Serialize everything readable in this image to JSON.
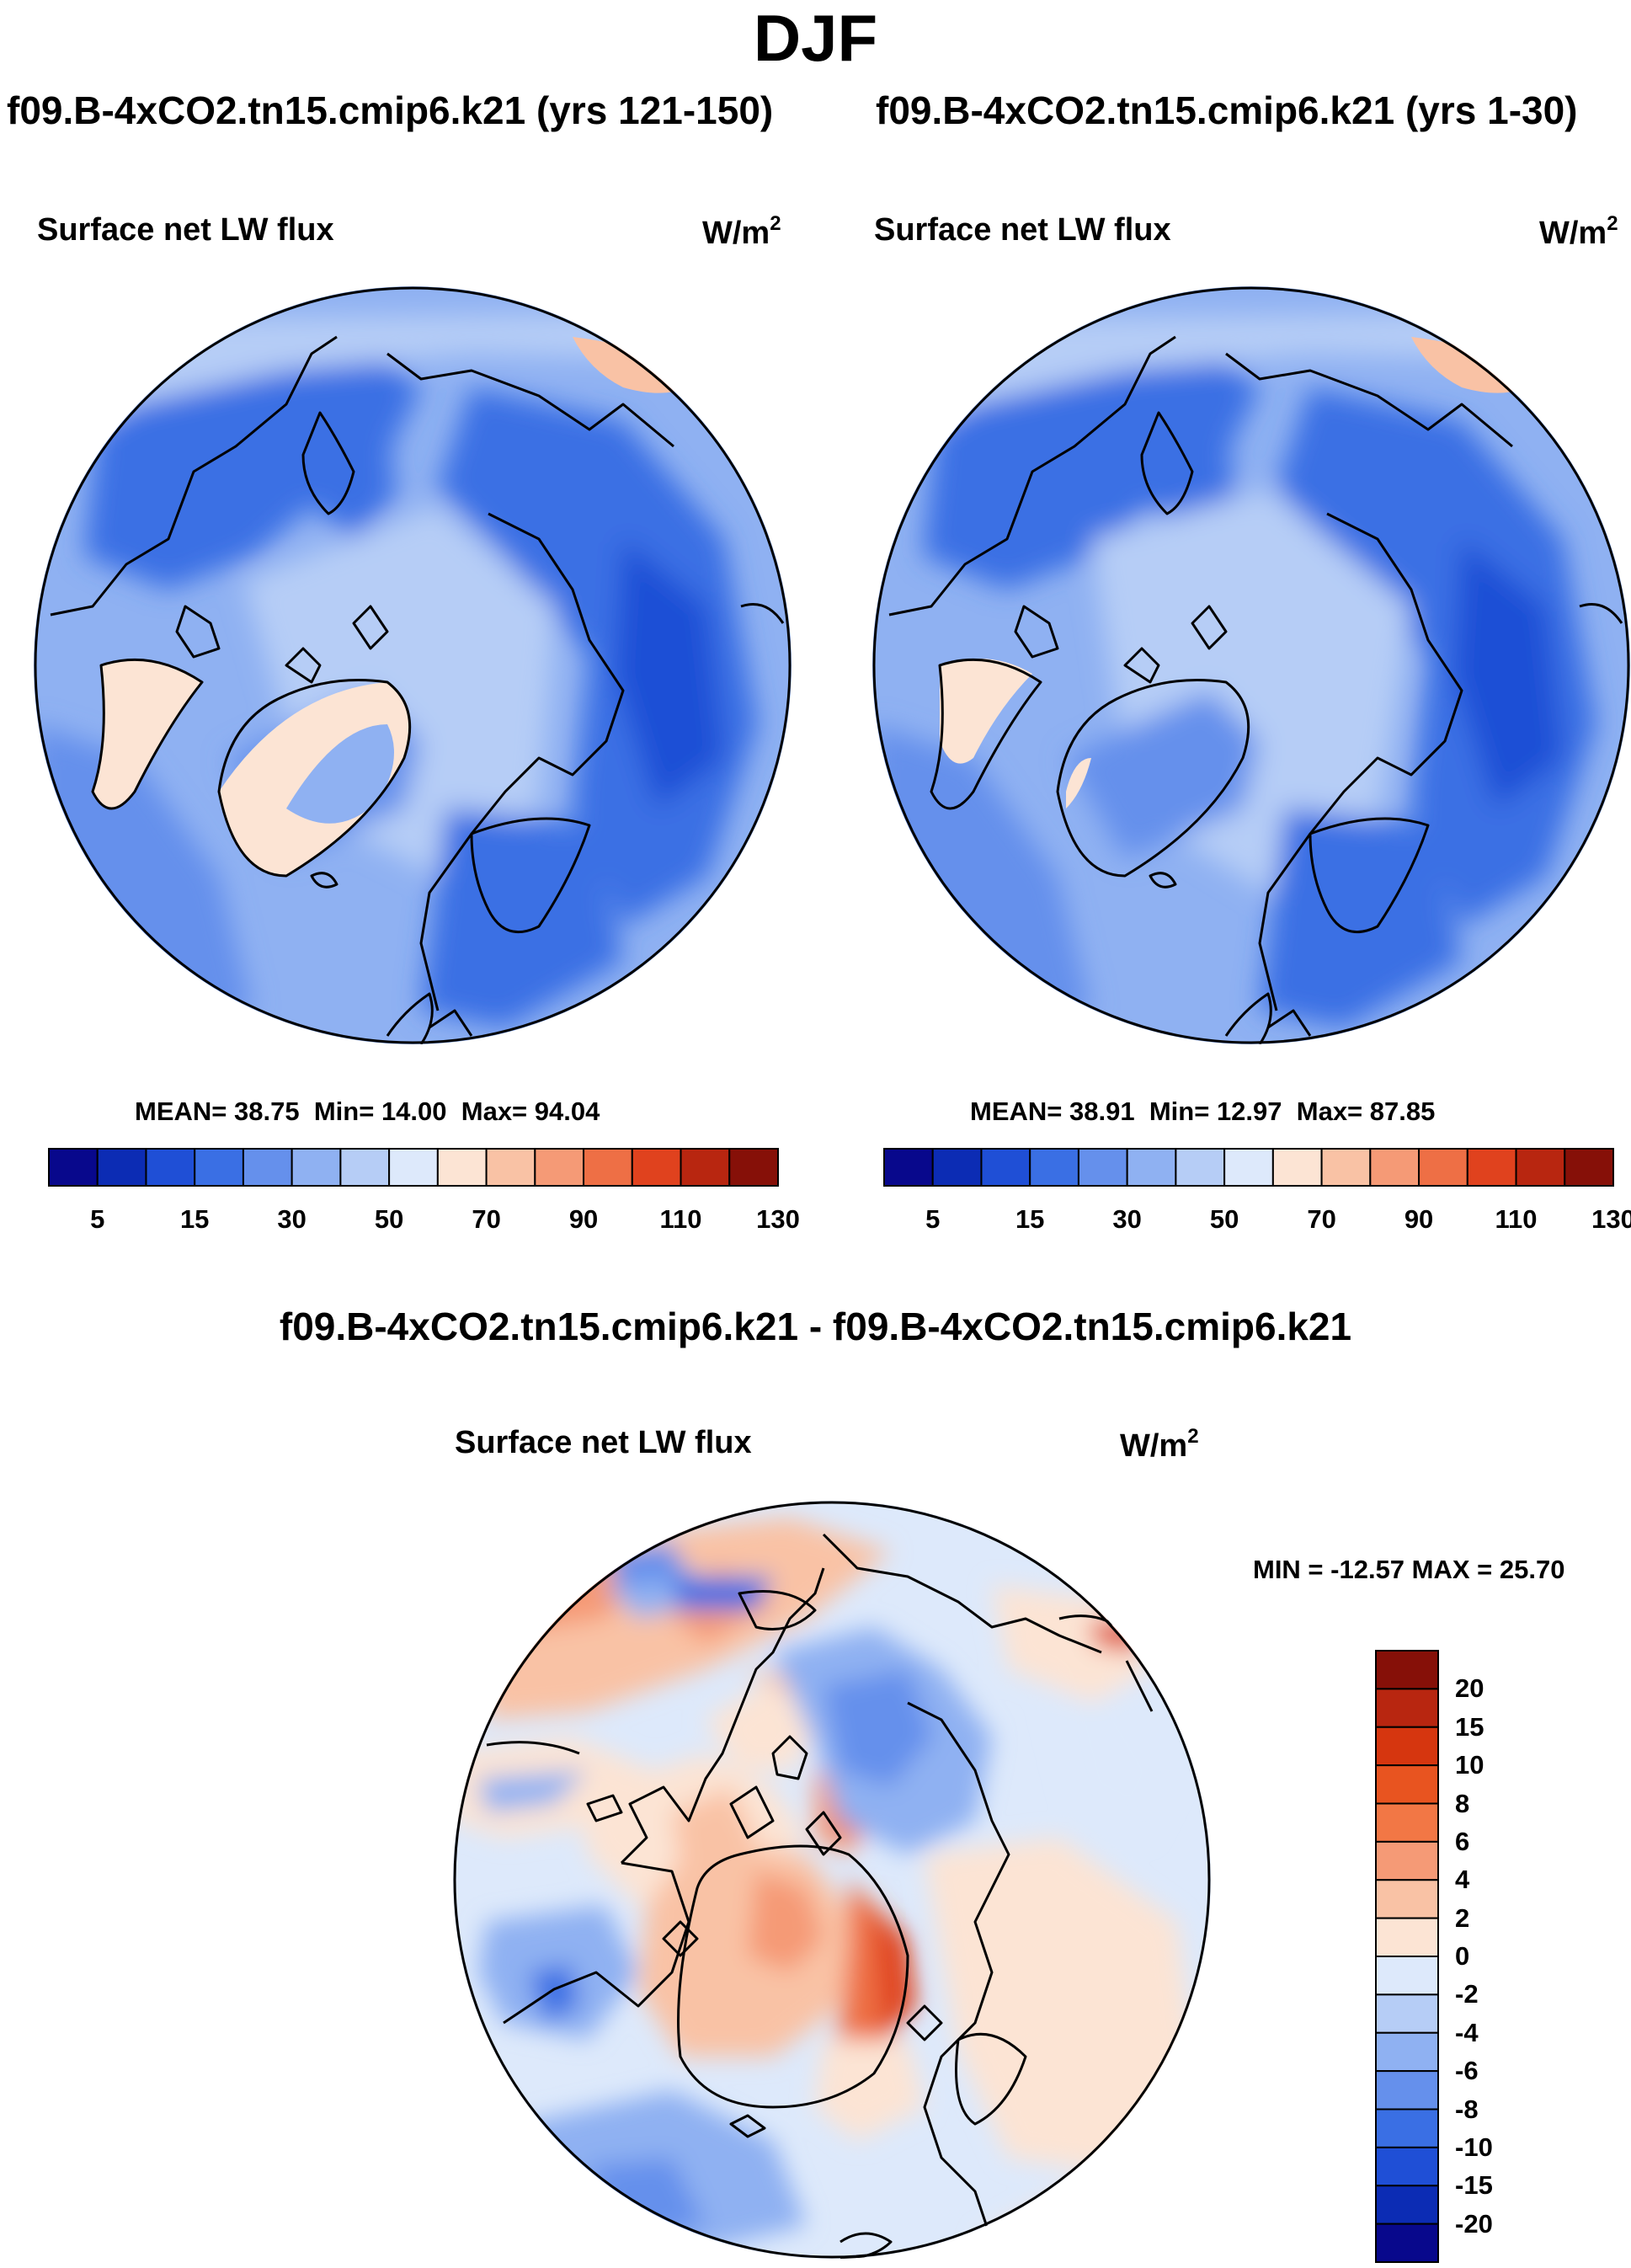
{
  "main_title": "DJF",
  "panels": [
    {
      "run_title": "f09.B-4xCO2.tn15.cmip6.k21 (yrs 121-150)",
      "variable": "Surface net LW flux",
      "units": "W/m",
      "units_exponent": "2",
      "stats": {
        "mean_label": "MEAN=",
        "mean": "38.75",
        "min_label": "Min=",
        "min": "14.00",
        "max_label": "Max=",
        "max": "94.04"
      }
    },
    {
      "run_title": "f09.B-4xCO2.tn15.cmip6.k21 (yrs 1-30)",
      "variable": "Surface net LW flux",
      "units": "W/m",
      "units_exponent": "2",
      "stats": {
        "mean_label": "MEAN=",
        "mean": "38.91",
        "min_label": "Min=",
        "min": "12.97",
        "max_label": "Max=",
        "max": "87.85"
      }
    }
  ],
  "diff_panel": {
    "title": "f09.B-4xCO2.tn15.cmip6.k21 - f09.B-4xCO2.tn15.cmip6.k21",
    "variable": "Surface net LW flux",
    "units": "W/m",
    "units_exponent": "2",
    "minmax": "MIN = -12.57  MAX =  25.70"
  },
  "colorbar_abs": {
    "colors": [
      "#08088c",
      "#0c2cb4",
      "#1f4fd6",
      "#3a6fe4",
      "#6590ec",
      "#8fb1f2",
      "#b6cdf6",
      "#dde9fb",
      "#fce4d4",
      "#f9c2a5",
      "#f59a76",
      "#ee6f45",
      "#e0421e",
      "#b82610",
      "#861008"
    ],
    "tick_labels": [
      "5",
      "15",
      "30",
      "50",
      "70",
      "90",
      "110",
      "130"
    ]
  },
  "colorbar_diff": {
    "colors": [
      "#861008",
      "#b82610",
      "#d6360f",
      "#e85420",
      "#f27745",
      "#f59a76",
      "#f9c2a5",
      "#fce4d4",
      "#dde9fb",
      "#b6cdf6",
      "#8fb1f2",
      "#6590ec",
      "#3a6fe4",
      "#1f4fd6",
      "#0c2cb4",
      "#08088c"
    ],
    "tick_labels": [
      "20",
      "15",
      "10",
      "8",
      "6",
      "4",
      "2",
      "0",
      "-2",
      "-4",
      "-6",
      "-8",
      "-10",
      "-15",
      "-20"
    ]
  }
}
